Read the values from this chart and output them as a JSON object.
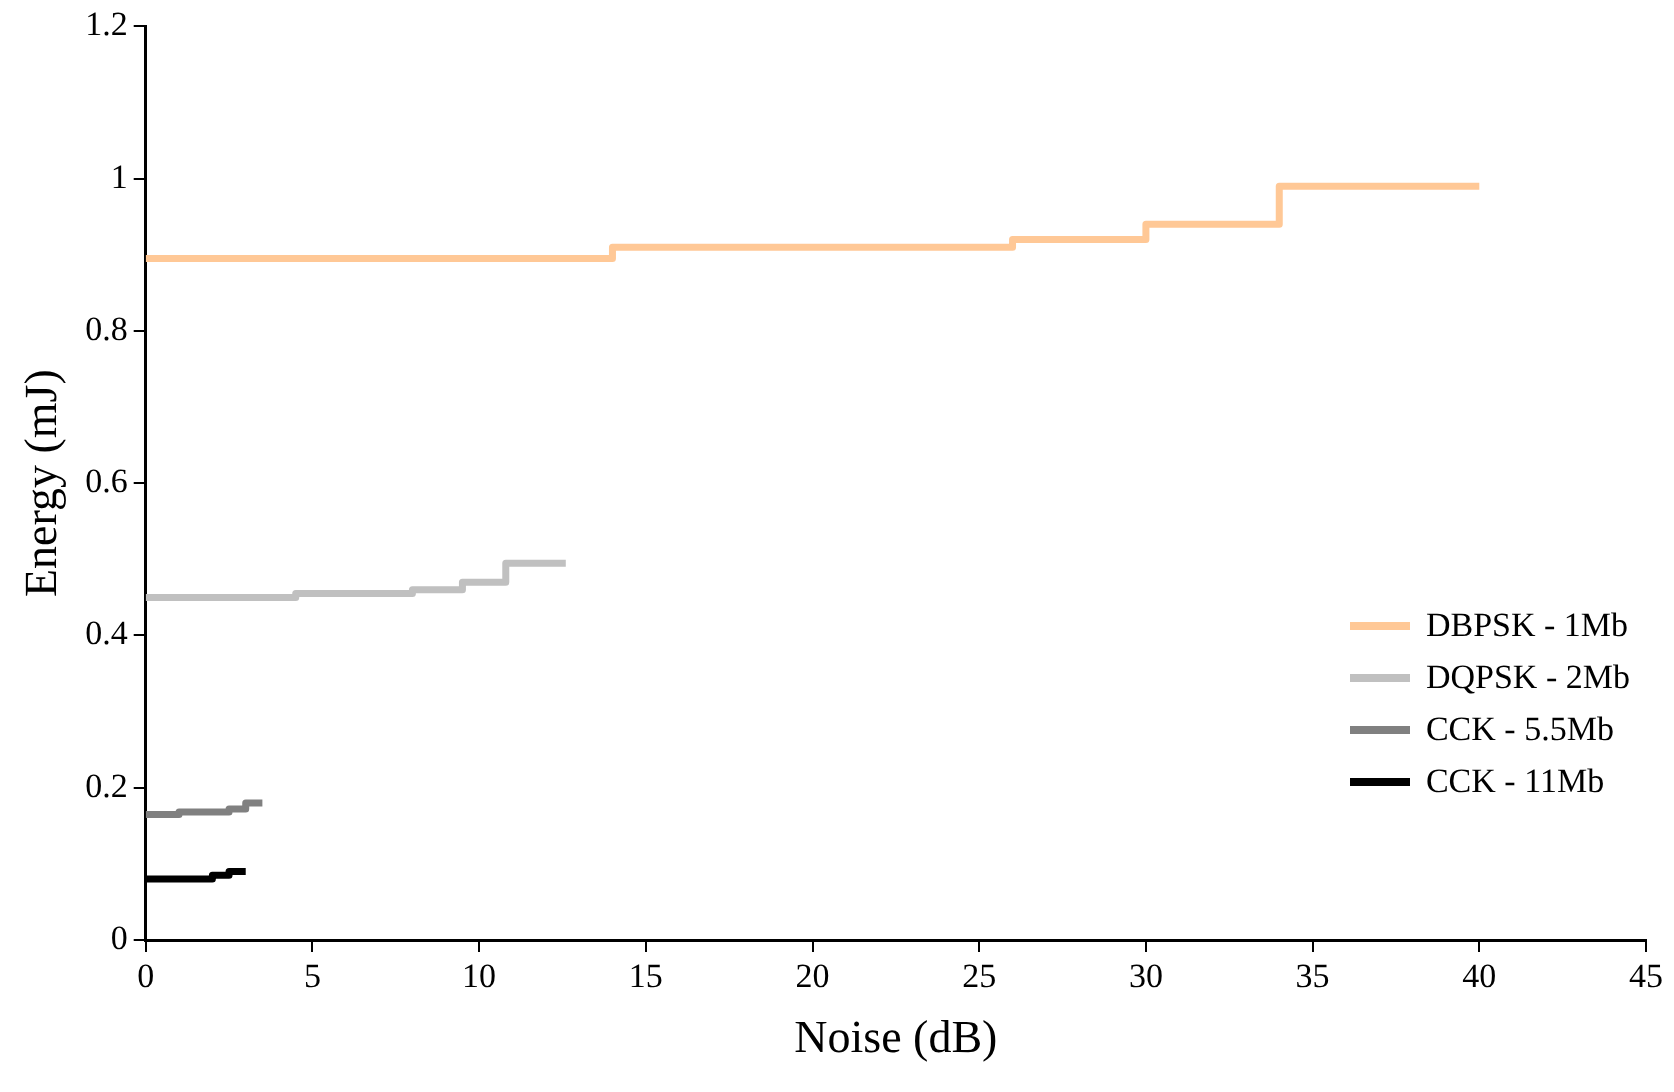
{
  "chart_data": {
    "type": "step",
    "xlabel": "Noise (dB)",
    "ylabel": "Energy (mJ)",
    "xlim": [
      0,
      45
    ],
    "xticks": [
      0,
      5,
      10,
      15,
      20,
      25,
      30,
      35,
      40,
      45
    ],
    "ylim": [
      0,
      1.2
    ],
    "yticks": [
      0,
      0.2,
      0.4,
      0.6,
      0.8,
      1,
      1.2
    ],
    "grid": false,
    "legend": "right",
    "marker": "none",
    "series": [
      {
        "name": "DBPSK - 1Mb",
        "color": "#ffc896",
        "x": [
          0,
          14,
          26,
          30,
          34,
          40
        ],
        "values": [
          0.895,
          0.91,
          0.92,
          0.94,
          0.99,
          0.99
        ]
      },
      {
        "name": "DQPSK - 2Mb",
        "color": "#c0c0c0",
        "x": [
          0,
          4.5,
          8,
          9.5,
          10.8,
          12.6
        ],
        "values": [
          0.45,
          0.455,
          0.46,
          0.47,
          0.495,
          0.495
        ]
      },
      {
        "name": "CCK - 5.5Mb",
        "color": "#808080",
        "x": [
          0,
          1,
          2.5,
          3,
          3.5
        ],
        "values": [
          0.165,
          0.168,
          0.172,
          0.18,
          0.18
        ]
      },
      {
        "name": "CCK - 11Mb",
        "color": "#000000",
        "x": [
          0,
          2,
          2.5,
          3
        ],
        "values": [
          0.08,
          0.085,
          0.09,
          0.09
        ]
      }
    ]
  }
}
